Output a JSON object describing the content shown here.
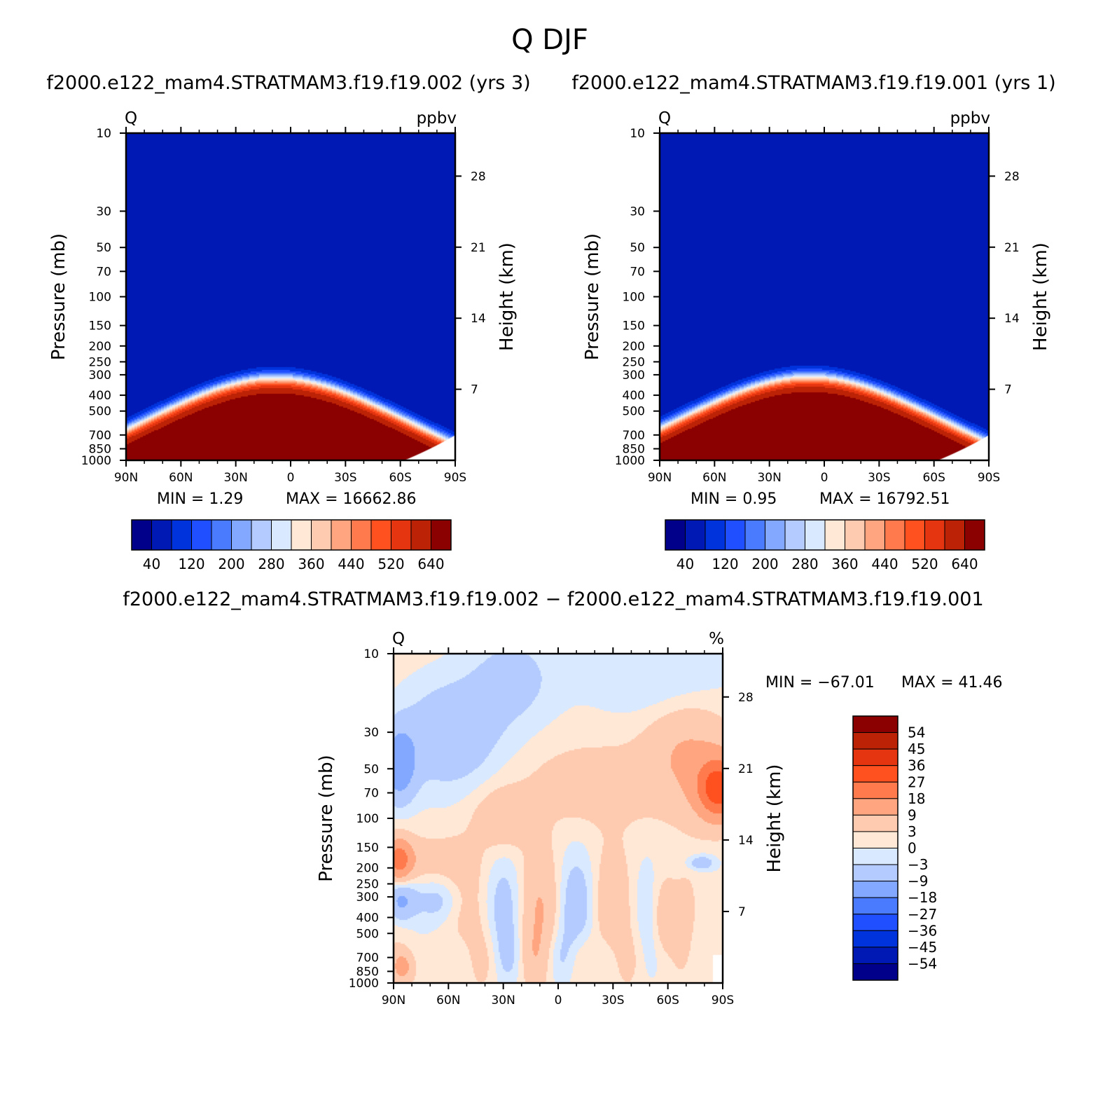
{
  "figure": {
    "title": "Q DJF",
    "panel_left_title": "f2000.e122_mam4.STRATMAM3.f19.f19.002 (yrs 3)",
    "panel_right_title": "f2000.e122_mam4.STRATMAM3.f19.f19.001 (yrs 1)",
    "panel_diff_title": "f2000.e122_mam4.STRATMAM3.f19.f19.002 − f2000.e122_mam4.STRATMAM3.f19.f19.001"
  },
  "chart_data": [
    {
      "type": "heatmap",
      "panel": "left",
      "variable_label": "Q",
      "units_label": "ppbv",
      "ylabel": "Pressure (mb)",
      "y2label": "Height (km)",
      "x_ticks": [
        "90N",
        "60N",
        "30N",
        "0",
        "30S",
        "60S",
        "90S"
      ],
      "x_values": [
        90,
        60,
        30,
        0,
        -30,
        -60,
        -90
      ],
      "y_ticks": [
        "10",
        "30",
        "50",
        "70",
        "100",
        "150",
        "200",
        "250",
        "300",
        "400",
        "500",
        "700",
        "850",
        "1000"
      ],
      "y_values": [
        10,
        30,
        50,
        70,
        100,
        150,
        200,
        250,
        300,
        400,
        500,
        700,
        850,
        1000
      ],
      "y2_ticks": [
        "28",
        "21",
        "14",
        "7"
      ],
      "y2_values": [
        28,
        21,
        14,
        7
      ],
      "ylim": [
        1000,
        10
      ],
      "min_text": "MIN =    1.29",
      "max_text": "MAX =  16662.86",
      "min": 1.29,
      "max": 16662.86,
      "colorbar_labels": [
        "40",
        "120",
        "200",
        "280",
        "360",
        "440",
        "520",
        "640"
      ],
      "contour_levels": [
        0,
        40,
        80,
        120,
        160,
        200,
        240,
        280,
        320,
        360,
        400,
        440,
        480,
        520,
        560,
        640
      ]
    },
    {
      "type": "heatmap",
      "panel": "right",
      "variable_label": "Q",
      "units_label": "ppbv",
      "ylabel": "Pressure (mb)",
      "y2label": "Height (km)",
      "x_ticks": [
        "90N",
        "60N",
        "30N",
        "0",
        "30S",
        "60S",
        "90S"
      ],
      "x_values": [
        90,
        60,
        30,
        0,
        -30,
        -60,
        -90
      ],
      "y_ticks": [
        "10",
        "30",
        "50",
        "70",
        "100",
        "150",
        "200",
        "250",
        "300",
        "400",
        "500",
        "700",
        "850",
        "1000"
      ],
      "y_values": [
        10,
        30,
        50,
        70,
        100,
        150,
        200,
        250,
        300,
        400,
        500,
        700,
        850,
        1000
      ],
      "y2_ticks": [
        "28",
        "21",
        "14",
        "7"
      ],
      "y2_values": [
        28,
        21,
        14,
        7
      ],
      "ylim": [
        1000,
        10
      ],
      "min_text": "MIN =    0.95",
      "max_text": "MAX =  16792.51",
      "min": 0.95,
      "max": 16792.51,
      "colorbar_labels": [
        "40",
        "120",
        "200",
        "280",
        "360",
        "440",
        "520",
        "640"
      ],
      "contour_levels": [
        0,
        40,
        80,
        120,
        160,
        200,
        240,
        280,
        320,
        360,
        400,
        440,
        480,
        520,
        560,
        640
      ]
    },
    {
      "type": "heatmap",
      "panel": "difference",
      "variable_label": "Q",
      "units_label": "%",
      "ylabel": "Pressure (mb)",
      "y2label": "Height (km)",
      "x_ticks": [
        "90N",
        "60N",
        "30N",
        "0",
        "30S",
        "60S",
        "90S"
      ],
      "x_values": [
        90,
        60,
        30,
        0,
        -30,
        -60,
        -90
      ],
      "y_ticks": [
        "10",
        "30",
        "50",
        "70",
        "100",
        "150",
        "200",
        "250",
        "300",
        "400",
        "500",
        "700",
        "850",
        "1000"
      ],
      "y_values": [
        10,
        30,
        50,
        70,
        100,
        150,
        200,
        250,
        300,
        400,
        500,
        700,
        850,
        1000
      ],
      "y2_ticks": [
        "28",
        "21",
        "14",
        "7"
      ],
      "y2_values": [
        28,
        21,
        14,
        7
      ],
      "ylim": [
        1000,
        10
      ],
      "min_text": "MIN = −67.01",
      "max_text": "MAX =   41.46",
      "min": -67.01,
      "max": 41.46,
      "colorbar_labels": [
        "54",
        "45",
        "36",
        "27",
        "18",
        "9",
        "3",
        "0",
        "−3",
        "−9",
        "−18",
        "−27",
        "−36",
        "−45",
        "−54"
      ],
      "contour_levels": [
        -54,
        -45,
        -36,
        -27,
        -18,
        -9,
        -3,
        0,
        3,
        9,
        18,
        27,
        36,
        45,
        54
      ]
    }
  ],
  "colors": {
    "seq16": [
      "#00008b",
      "#0019b4",
      "#0033dc",
      "#1f4fff",
      "#4a7bff",
      "#82a8ff",
      "#b3cbff",
      "#d9e9ff",
      "#ffe8d6",
      "#ffcbb0",
      "#ffa680",
      "#ff7a4d",
      "#ff5020",
      "#e43510",
      "#bb2206",
      "#8b0000"
    ],
    "div16_top_to_bottom": [
      "#8b0000",
      "#bb2206",
      "#e43510",
      "#ff5020",
      "#ff7a4d",
      "#ffa680",
      "#ffcbb0",
      "#ffe8d6",
      "#d9e9ff",
      "#b3cbff",
      "#82a8ff",
      "#4a7bff",
      "#1f4fff",
      "#0033dc",
      "#0019b4",
      "#00008b"
    ]
  }
}
